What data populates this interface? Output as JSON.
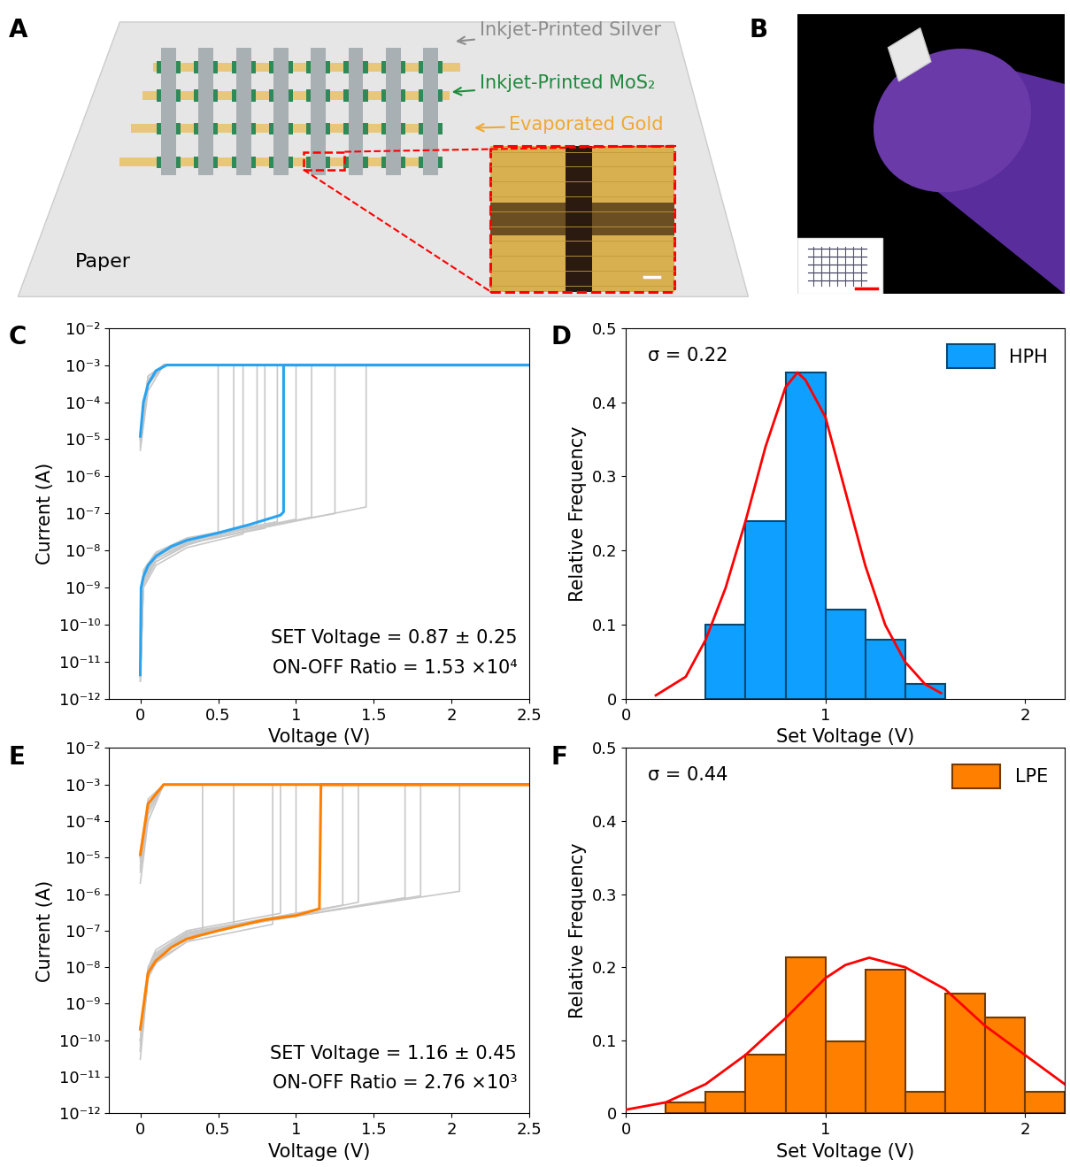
{
  "panel_labels_order": [
    "A",
    "B",
    "C",
    "D",
    "E",
    "F"
  ],
  "schematic": {
    "panel": "A",
    "substrate": "Paper",
    "labels": [
      {
        "text": "Inkjet-Printed Silver",
        "color": "#8c8c8c"
      },
      {
        "text": "Inkjet-Printed MoS₂",
        "color": "#1f8a3c"
      },
      {
        "text": "Evaporated Gold",
        "color": "#f0a830"
      }
    ]
  },
  "photo": {
    "panel": "B"
  },
  "chart_data": [
    {
      "panel": "C",
      "type": "line",
      "log": "y",
      "xlabel": "Voltage (V)",
      "ylabel": "Current (A)",
      "xlim": [
        -0.2,
        2.5
      ],
      "xticks": [
        0,
        0.5,
        1,
        1.5,
        2,
        2.5
      ],
      "ylim": [
        1e-12,
        0.01
      ],
      "yticks": [
        {
          "value": 1e-12,
          "label": "10⁻¹²"
        },
        {
          "value": 1e-11,
          "label": "10⁻¹¹"
        },
        {
          "value": 1e-10,
          "label": "10⁻¹⁰"
        },
        {
          "value": 1e-09,
          "label": "10⁻⁹"
        },
        {
          "value": 1e-08,
          "label": "10⁻⁸"
        },
        {
          "value": 1e-07,
          "label": "10⁻⁷"
        },
        {
          "value": 1e-06,
          "label": "10⁻⁶"
        },
        {
          "value": 1e-05,
          "label": "10⁻⁵"
        },
        {
          "value": 0.0001,
          "label": "10⁻⁴"
        },
        {
          "value": 0.001,
          "label": "10⁻³"
        },
        {
          "value": 0.01,
          "label": "10⁻²"
        }
      ],
      "annotations": [
        "SET Voltage = 0.87 ± 0.25",
        "ON-OFF Ratio = 1.53 ×10⁴"
      ],
      "series": [
        {
          "color": "#c8c8c8",
          "x": [
            0,
            0.02,
            0.1,
            0.3,
            0.5,
            0.5,
            2.5,
            2.5,
            0.15,
            0.05,
            0
          ],
          "values": [
            4e-12,
            1.5e-09,
            5e-09,
            1.4e-08,
            2.5e-08,
            0.001,
            0.001,
            0.001,
            0.001,
            0.0004,
            6e-06
          ]
        },
        {
          "color": "#c8c8c8",
          "x": [
            0,
            0.02,
            0.1,
            0.3,
            0.6,
            0.6,
            2.5,
            2.5,
            0.15,
            0.05,
            0
          ],
          "values": [
            6e-12,
            2e-09,
            7e-09,
            1.8e-08,
            3.2e-08,
            0.001,
            0.001,
            0.001,
            0.001,
            0.0003,
            1e-05
          ]
        },
        {
          "color": "#c8c8c8",
          "x": [
            0,
            0.02,
            0.1,
            0.3,
            0.66,
            0.66,
            2.5,
            2.5,
            0.15,
            0.05,
            0
          ],
          "values": [
            3e-12,
            1e-09,
            4e-09,
            1.2e-08,
            2.8e-08,
            0.001,
            0.001,
            0.001,
            0.001,
            0.0005,
            1.5e-05
          ]
        },
        {
          "color": "#c8c8c8",
          "x": [
            0,
            0.02,
            0.1,
            0.3,
            0.75,
            0.75,
            2.5,
            2.5,
            0.15,
            0.05,
            0
          ],
          "values": [
            5e-12,
            2.5e-09,
            8e-09,
            2e-08,
            4.5e-08,
            0.001,
            0.001,
            0.001,
            0.001,
            0.0002,
            5e-06
          ]
        },
        {
          "color": "#c8c8c8",
          "x": [
            0,
            0.02,
            0.1,
            0.3,
            0.8,
            0.8,
            2.5,
            2.5,
            0.15,
            0.05,
            0
          ],
          "values": [
            4e-12,
            1.8e-09,
            6e-09,
            1.6e-08,
            4e-08,
            0.001,
            0.001,
            0.001,
            0.001,
            0.0004,
            1e-05
          ]
        },
        {
          "color": "#c8c8c8",
          "x": [
            0,
            0.02,
            0.1,
            0.3,
            0.88,
            0.88,
            2.5,
            2.5,
            0.15,
            0.05,
            0
          ],
          "values": [
            8e-12,
            3e-09,
            9e-09,
            2.2e-08,
            6e-08,
            0.001,
            0.001,
            0.001,
            0.001,
            0.0003,
            8e-06
          ]
        },
        {
          "color": "#c8c8c8",
          "x": [
            0,
            0.02,
            0.1,
            0.3,
            1.0,
            1.0,
            2.5,
            2.5,
            0.15,
            0.05,
            0
          ],
          "values": [
            5e-12,
            2e-09,
            7e-09,
            1.8e-08,
            7e-08,
            0.001,
            0.001,
            0.001,
            0.001,
            0.0005,
            1.2e-05
          ]
        },
        {
          "color": "#c8c8c8",
          "x": [
            0,
            0.02,
            0.1,
            0.3,
            1.1,
            1.1,
            2.5,
            2.5,
            0.15,
            0.05,
            0
          ],
          "values": [
            3e-12,
            1.2e-09,
            5e-09,
            1.5e-08,
            8e-08,
            0.001,
            0.001,
            0.001,
            0.001,
            0.0003,
            7e-06
          ]
        },
        {
          "color": "#c8c8c8",
          "x": [
            0,
            0.02,
            0.1,
            0.3,
            1.25,
            1.25,
            2.5,
            2.5,
            0.15,
            0.05,
            0
          ],
          "values": [
            6e-12,
            2.2e-09,
            8e-09,
            2e-08,
            1e-07,
            0.001,
            0.001,
            0.001,
            0.001,
            0.0004,
            1e-05
          ]
        },
        {
          "color": "#c8c8c8",
          "x": [
            0,
            0.02,
            0.1,
            0.3,
            1.45,
            1.45,
            2.5,
            2.5,
            0.15,
            0.05,
            0
          ],
          "values": [
            4e-12,
            1.5e-09,
            6e-09,
            1.6e-08,
            1.5e-07,
            0.001,
            0.001,
            0.001,
            0.001,
            0.0003,
            9e-06
          ]
        },
        {
          "color": "#29a3f0",
          "x": [
            0,
            0.005,
            0.02,
            0.05,
            0.1,
            0.2,
            0.3,
            0.5,
            0.7,
            0.9,
            0.92,
            0.92,
            2.5,
            2.5,
            0.17,
            0.1,
            0.05,
            0.02,
            0
          ],
          "values": [
            4.5e-12,
            1e-09,
            2e-09,
            4e-09,
            7e-09,
            1.3e-08,
            1.9e-08,
            3e-08,
            5e-08,
            9e-08,
            1.1e-07,
            0.001,
            0.001,
            0.001,
            0.001,
            0.0007,
            0.0003,
            0.0001,
            1.2e-05
          ]
        }
      ]
    },
    {
      "panel": "D",
      "type": "histogram",
      "name": "HPH",
      "color": "#0fa0ff",
      "legend": "upper right",
      "xlabel": "Set Voltage (V)",
      "ylabel": "Relative Frequency",
      "xlim": [
        0,
        2.2
      ],
      "xticks": [
        0,
        1,
        2
      ],
      "ylim": [
        0,
        0.5
      ],
      "yticks": [
        0,
        0.1,
        0.2,
        0.3,
        0.4,
        0.5
      ],
      "annotations": [
        "σ = 0.22"
      ],
      "bins": [
        0.4,
        0.6,
        0.8,
        1.0,
        1.2,
        1.4,
        1.6
      ],
      "counts": [
        0.1,
        0.24,
        0.44,
        0.12,
        0.08,
        0.02
      ],
      "fit": {
        "type": "line",
        "color": "#ff0000",
        "x": [
          0.15,
          0.3,
          0.4,
          0.5,
          0.6,
          0.7,
          0.8,
          0.86,
          0.9,
          1.0,
          1.1,
          1.2,
          1.3,
          1.4,
          1.5,
          1.58
        ],
        "values": [
          0.005,
          0.03,
          0.08,
          0.15,
          0.24,
          0.34,
          0.42,
          0.44,
          0.43,
          0.38,
          0.28,
          0.18,
          0.1,
          0.05,
          0.02,
          0.008
        ]
      }
    },
    {
      "panel": "E",
      "type": "line",
      "log": "y",
      "xlabel": "Voltage (V)",
      "ylabel": "Current (A)",
      "xlim": [
        -0.2,
        2.5
      ],
      "xticks": [
        0,
        0.5,
        1,
        1.5,
        2,
        2.5
      ],
      "ylim": [
        1e-12,
        0.01
      ],
      "yticks": [
        {
          "value": 1e-12,
          "label": "10⁻¹²"
        },
        {
          "value": 1e-11,
          "label": "10⁻¹¹"
        },
        {
          "value": 1e-10,
          "label": "10⁻¹⁰"
        },
        {
          "value": 1e-09,
          "label": "10⁻⁹"
        },
        {
          "value": 1e-08,
          "label": "10⁻⁸"
        },
        {
          "value": 1e-07,
          "label": "10⁻⁷"
        },
        {
          "value": 1e-06,
          "label": "10⁻⁶"
        },
        {
          "value": 1e-05,
          "label": "10⁻⁵"
        },
        {
          "value": 0.0001,
          "label": "10⁻⁴"
        },
        {
          "value": 0.001,
          "label": "10⁻³"
        },
        {
          "value": 0.01,
          "label": "10⁻²"
        }
      ],
      "annotations": [
        "SET Voltage = 1.16 ± 0.45",
        "ON-OFF Ratio = 2.76 ×10³"
      ],
      "series": [
        {
          "color": "#c8c8c8",
          "x": [
            0,
            0.05,
            0.1,
            0.3,
            0.4,
            0.4,
            2.5,
            2.5,
            0.15,
            0.05,
            0
          ],
          "values": [
            5e-11,
            6e-09,
            1.5e-08,
            5e-08,
            8e-08,
            0.001,
            0.001,
            0.001,
            0.001,
            0.0002,
            5e-06
          ]
        },
        {
          "color": "#c8c8c8",
          "x": [
            0,
            0.05,
            0.1,
            0.3,
            0.6,
            0.6,
            2.5,
            2.5,
            0.15,
            0.05,
            0
          ],
          "values": [
            1e-10,
            8e-09,
            2e-08,
            7e-08,
            1.3e-07,
            0.001,
            0.001,
            0.001,
            0.001,
            0.0003,
            1e-05
          ]
        },
        {
          "color": "#c8c8c8",
          "x": [
            0,
            0.05,
            0.1,
            0.3,
            0.85,
            0.85,
            2.5,
            2.5,
            0.15,
            0.05,
            0
          ],
          "values": [
            3e-11,
            5e-09,
            1.3e-08,
            5e-08,
            1.5e-07,
            0.001,
            0.001,
            0.001,
            0.001,
            0.00025,
            8e-06
          ]
        },
        {
          "color": "#c8c8c8",
          "x": [
            0,
            0.05,
            0.1,
            0.3,
            0.9,
            0.9,
            2.5,
            2.5,
            0.15,
            0.05,
            0
          ],
          "values": [
            2e-10,
            1e-08,
            3e-08,
            1e-07,
            3e-07,
            0.001,
            0.001,
            0.001,
            0.001,
            0.0004,
            1.5e-05
          ]
        },
        {
          "color": "#c8c8c8",
          "x": [
            0,
            0.05,
            0.1,
            0.3,
            1.0,
            1.0,
            2.5,
            2.5,
            0.15,
            0.05,
            0
          ],
          "values": [
            8e-11,
            7e-09,
            2e-08,
            8e-08,
            3e-07,
            0.001,
            0.001,
            0.001,
            0.001,
            0.0001,
            2e-06
          ]
        },
        {
          "color": "#c8c8c8",
          "x": [
            0,
            0.05,
            0.1,
            0.3,
            1.3,
            1.3,
            2.5,
            2.5,
            0.15,
            0.05,
            0
          ],
          "values": [
            1e-10,
            9e-09,
            2.5e-08,
            9e-08,
            5e-07,
            0.001,
            0.001,
            0.001,
            0.001,
            0.0003,
            1e-05
          ]
        },
        {
          "color": "#c8c8c8",
          "x": [
            0,
            0.05,
            0.1,
            0.3,
            1.4,
            1.4,
            2.5,
            2.5,
            0.15,
            0.05,
            0
          ],
          "values": [
            5e-11,
            6e-09,
            1.8e-08,
            7e-08,
            6e-07,
            0.001,
            0.001,
            0.001,
            0.001,
            0.0002,
            6e-06
          ]
        },
        {
          "color": "#c8c8c8",
          "x": [
            0,
            0.05,
            0.1,
            0.3,
            1.7,
            1.7,
            2.5,
            2.5,
            0.15,
            0.05,
            0
          ],
          "values": [
            1e-10,
            8e-09,
            2.2e-08,
            8e-08,
            8e-07,
            0.001,
            0.001,
            0.001,
            0.001,
            0.0003,
            1e-05
          ]
        },
        {
          "color": "#c8c8c8",
          "x": [
            0,
            0.05,
            0.1,
            0.3,
            1.8,
            1.8,
            2.5,
            2.5,
            0.15,
            0.05,
            0
          ],
          "values": [
            6e-11,
            7e-09,
            2e-08,
            8e-08,
            9e-07,
            0.001,
            0.001,
            0.001,
            0.001,
            0.00015,
            4e-06
          ]
        },
        {
          "color": "#c8c8c8",
          "x": [
            0,
            0.05,
            0.1,
            0.3,
            2.05,
            2.05,
            2.5,
            2.5,
            0.15,
            0.05,
            0
          ],
          "values": [
            1e-10,
            8e-09,
            2.2e-08,
            9e-08,
            1.2e-06,
            0.001,
            0.001,
            0.001,
            0.001,
            0.0003,
            1e-05
          ]
        },
        {
          "color": "#ff8000",
          "x": [
            0,
            0.05,
            0.1,
            0.2,
            0.3,
            0.5,
            0.8,
            1.0,
            1.15,
            1.16,
            2.5,
            2.5,
            0.15,
            0.05,
            0
          ],
          "values": [
            2e-10,
            7e-09,
            1.5e-08,
            3.5e-08,
            6e-08,
            1e-07,
            2e-07,
            2.6e-07,
            4e-07,
            0.001,
            0.001,
            0.001,
            0.001,
            0.0003,
            1.2e-05
          ]
        }
      ]
    },
    {
      "panel": "F",
      "type": "histogram",
      "name": "LPE",
      "color": "#ff8000",
      "legend": "upper right",
      "xlabel": "Set Voltage (V)",
      "ylabel": "Relative Frequency",
      "xlim": [
        0,
        2.2
      ],
      "xticks": [
        0,
        1,
        2
      ],
      "ylim": [
        0,
        0.5
      ],
      "yticks": [
        0,
        0.1,
        0.2,
        0.3,
        0.4,
        0.5
      ],
      "annotations": [
        "σ = 0.44"
      ],
      "bins": [
        0.2,
        0.4,
        0.6,
        0.8,
        1.0,
        1.2,
        1.4,
        1.6,
        1.8,
        2.0,
        2.2
      ],
      "counts": [
        0.015,
        0.03,
        0.08,
        0.213,
        0.098,
        0.197,
        0.03,
        0.164,
        0.131,
        0.03
      ],
      "fit": {
        "type": "line",
        "color": "#ff0000",
        "x": [
          0,
          0.2,
          0.4,
          0.6,
          0.8,
          1.0,
          1.1,
          1.22,
          1.4,
          1.6,
          1.8,
          2.0,
          2.2
        ],
        "values": [
          0.005,
          0.015,
          0.04,
          0.08,
          0.13,
          0.185,
          0.203,
          0.213,
          0.2,
          0.17,
          0.12,
          0.08,
          0.04
        ]
      }
    }
  ]
}
